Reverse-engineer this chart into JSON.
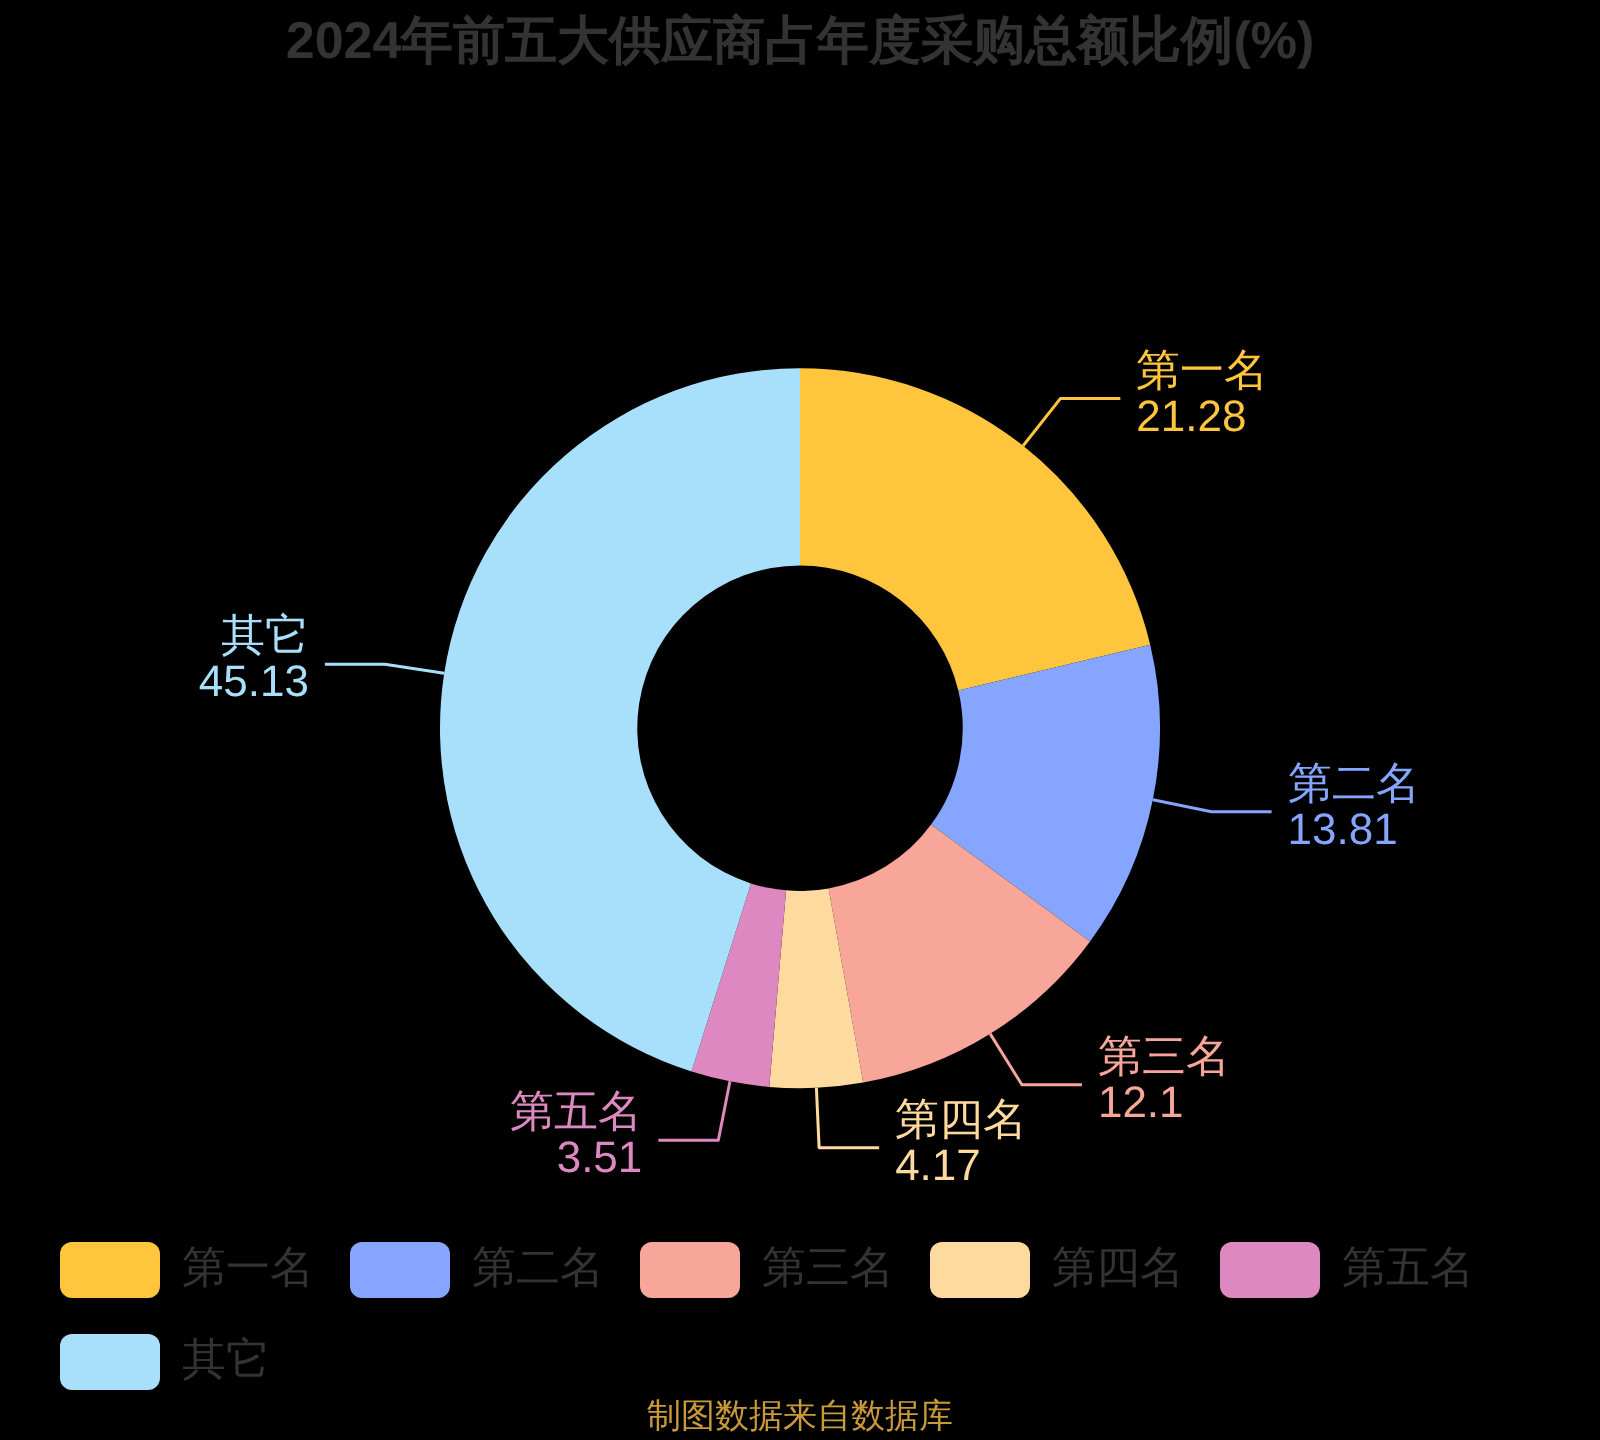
{
  "chart_data": {
    "type": "donut",
    "title": "2024年前五大供应商占年度采购总额比例(%)",
    "categories": [
      "第一名",
      "第二名",
      "第三名",
      "第四名",
      "第五名",
      "其它"
    ],
    "values": [
      21.28,
      13.81,
      12.1,
      4.17,
      3.51,
      45.13
    ],
    "colors": [
      "#ffc53d",
      "#85a5ff",
      "#f8a59a",
      "#ffda9e",
      "#dd88c0",
      "#a8e0fb"
    ],
    "legend": "bottom",
    "data_labels": true,
    "annotations": [
      "制图数据来自数据库"
    ]
  }
}
